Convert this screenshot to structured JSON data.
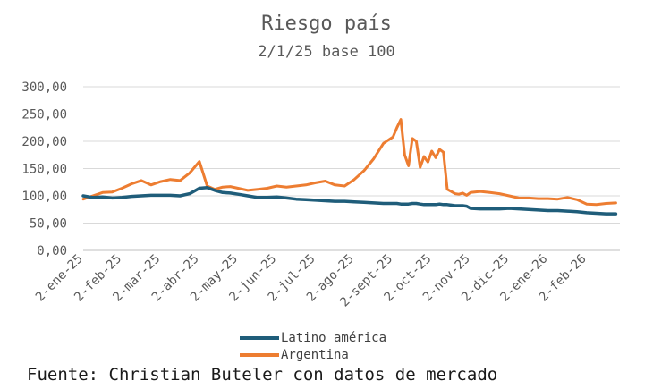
{
  "chart_data": {
    "type": "line",
    "title": "Riesgo país",
    "subtitle": "2/1/25 base 100",
    "xlabel": "",
    "ylabel": "",
    "ylim": [
      0,
      300
    ],
    "y_ticks": [
      "0,00",
      "50,00",
      "100,00",
      "150,00",
      "200,00",
      "250,00",
      "300,00"
    ],
    "y_tick_values": [
      0,
      50,
      100,
      150,
      200,
      250,
      300
    ],
    "grid": true,
    "legend_position": "bottom",
    "categories": [
      "2-ene-25",
      "2-feb-25",
      "2-mar-25",
      "2-abr-25",
      "2-may-25",
      "2-jun-25",
      "2-jul-25",
      "2-ago-25",
      "2-sept-25",
      "2-oct-25",
      "2-nov-25",
      "2-dic-25",
      "2-ene-26",
      "2-feb-26"
    ],
    "x": [
      0,
      0.25,
      0.5,
      0.75,
      1,
      1.25,
      1.5,
      1.75,
      2,
      2.25,
      2.5,
      2.75,
      3,
      3.2,
      3.4,
      3.6,
      3.8,
      4,
      4.25,
      4.5,
      4.75,
      5,
      5.25,
      5.5,
      5.75,
      6,
      6.25,
      6.5,
      6.75,
      7,
      7.25,
      7.5,
      7.75,
      8,
      8.1,
      8.2,
      8.3,
      8.4,
      8.5,
      8.6,
      8.7,
      8.8,
      8.9,
      9,
      9.1,
      9.2,
      9.3,
      9.4,
      9.5,
      9.6,
      9.7,
      9.8,
      9.9,
      10,
      10.25,
      10.5,
      10.75,
      11,
      11.25,
      11.5,
      11.75,
      12,
      12.25,
      12.5,
      12.75,
      13,
      13.25,
      13.5,
      13.75
    ],
    "series": [
      {
        "name": "Latino américa",
        "color": "#1f5d7a",
        "values": [
          100,
          97,
          98,
          96,
          97,
          99,
          100,
          101,
          101,
          101,
          100,
          104,
          114,
          115,
          110,
          106,
          105,
          103,
          100,
          97,
          97,
          98,
          96,
          94,
          93,
          92,
          91,
          90,
          90,
          89,
          88,
          87,
          86,
          86,
          86,
          85,
          85,
          85,
          86,
          86,
          85,
          84,
          84,
          84,
          84,
          85,
          84,
          84,
          83,
          82,
          82,
          82,
          81,
          77,
          76,
          76,
          76,
          77,
          76,
          75,
          74,
          73,
          73,
          72,
          71,
          69,
          68,
          67,
          67
        ]
      },
      {
        "name": "Argentina",
        "color": "#ed7d31",
        "values": [
          94,
          100,
          106,
          107,
          114,
          122,
          128,
          120,
          126,
          130,
          128,
          142,
          163,
          118,
          112,
          116,
          117,
          114,
          110,
          112,
          114,
          118,
          116,
          118,
          120,
          124,
          127,
          120,
          118,
          130,
          146,
          168,
          196,
          208,
          225,
          240,
          175,
          155,
          205,
          200,
          152,
          172,
          162,
          182,
          170,
          185,
          180,
          112,
          108,
          104,
          103,
          105,
          101,
          106,
          108,
          106,
          104,
          100,
          96,
          96,
          95,
          95,
          94,
          97,
          93,
          85,
          84,
          86,
          87
        ]
      }
    ]
  },
  "legend": [
    {
      "label": "Latino américa",
      "color": "#1f5d7a"
    },
    {
      "label": "Argentina",
      "color": "#ed7d31"
    }
  ],
  "source_note": "Fuente: Christian Buteler con datos de mercado"
}
